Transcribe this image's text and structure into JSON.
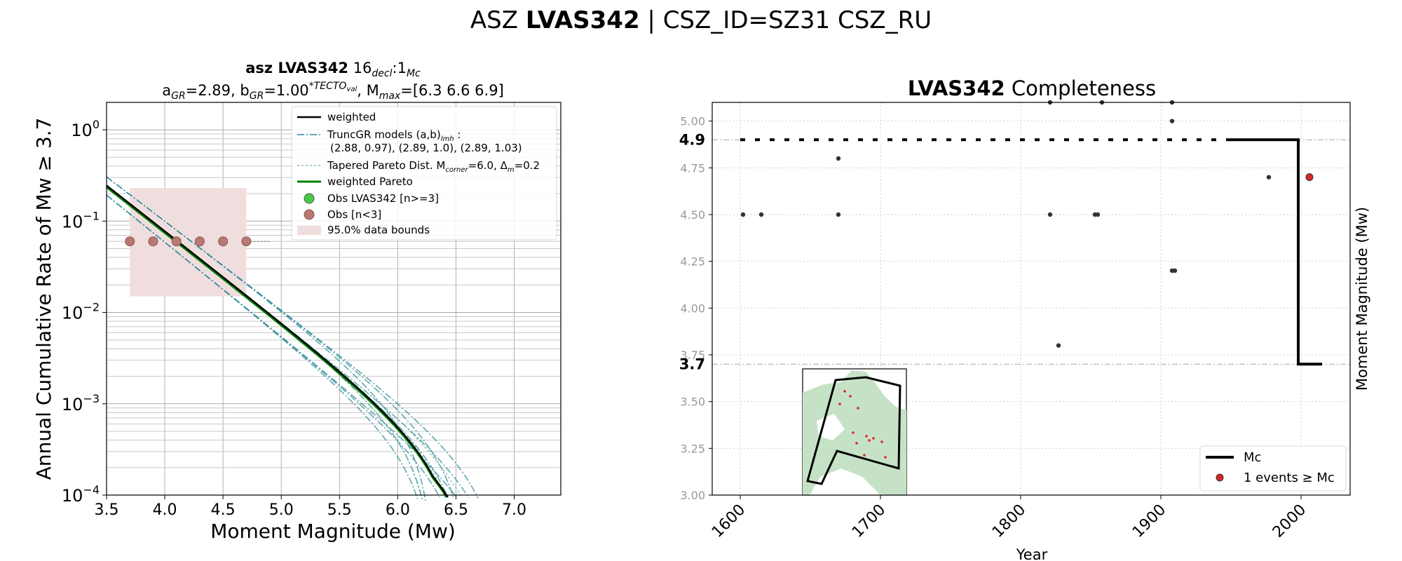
{
  "suptitle": {
    "prefix": "ASZ ",
    "bold": "LVAS342",
    "suffix": " | CSZ_ID=SZ31 CSZ_RU"
  },
  "colors": {
    "weighted": "#000000",
    "truncgr": "#2e8b9a",
    "pareto_models": "#6fb8ad",
    "weighted_pareto": "#008000",
    "obs_small": "#b87873",
    "obs_small_edge": "#8c5550",
    "obs_large": "#44cc44",
    "bounds": "#f0dede",
    "events": "#333333",
    "mc_event": "#d62728",
    "map_land": "#c6e2c6"
  },
  "chart_data": [
    {
      "type": "line",
      "title_line1": {
        "bold": "asz LVAS342",
        "n": "16",
        "n_sub": "decl",
        "sep": ":1",
        "sep_sub": "Mc"
      },
      "title_line2": {
        "a_label": "a",
        "a_sub": "GR",
        "a_val": "=2.89,  ",
        "b_label": "b",
        "b_sub": "GR",
        "b_val": "=1.00",
        "b_sup": "*TECTO",
        "b_sup_sub": "val",
        "mmax_label": ", M",
        "mmax_sub": "max",
        "mmax_val": "=[6.3 6.6 6.9]"
      },
      "xlabel": "Moment Magnitude (Mw)",
      "ylabel": "Annual Cumulative Rate of Mw  ≥  3.7",
      "xlim": [
        3.5,
        7.4
      ],
      "ylim_log10": [
        -4,
        0.3
      ],
      "yscale": "log",
      "x_ticks": [
        "3.5",
        "4.0",
        "4.5",
        "5.0",
        "5.5",
        "6.0",
        "6.5",
        "7.0"
      ],
      "y_ticks": [
        {
          "base": "10",
          "exp": "0",
          "v": 0
        },
        {
          "base": "10",
          "exp": "−1",
          "v": -1
        },
        {
          "base": "10",
          "exp": "−2",
          "v": -2
        },
        {
          "base": "10",
          "exp": "−3",
          "v": -3
        },
        {
          "base": "10",
          "exp": "−4",
          "v": -4
        }
      ],
      "a_value": 2.89,
      "b_value": 1.0,
      "mmin": 3.5,
      "truncgr_models": [
        [
          2.88,
          0.97
        ],
        [
          2.89,
          1.0
        ],
        [
          2.89,
          1.03
        ]
      ],
      "mmax_values": [
        6.3,
        6.6,
        6.9
      ],
      "pareto_corner": 6.0,
      "observations": [
        {
          "x": 3.7,
          "y": 0.06
        },
        {
          "x": 3.9,
          "y": 0.06
        },
        {
          "x": 4.1,
          "y": 0.06
        },
        {
          "x": 4.3,
          "y": 0.06
        },
        {
          "x": 4.5,
          "y": 0.06
        },
        {
          "x": 4.7,
          "y": 0.06
        }
      ],
      "bounds_box": {
        "x": [
          3.7,
          4.7
        ],
        "y": [
          0.015,
          0.23
        ]
      },
      "legend": {
        "weighted": "weighted",
        "truncgr_1": "TruncGR models (a,b)",
        "truncgr_1_sub": "lmh",
        "truncgr_1_tail": " :",
        "truncgr_2": "(2.88, 0.97), (2.89, 1.0), (2.89, 1.03)",
        "pareto_a": "Tapered Pareto Dist. M",
        "pareto_sub": "corner",
        "pareto_b": "=6.0, Δ",
        "pareto_sub2": "m",
        "pareto_c": "=0.2",
        "weighted_pareto": "weighted Pareto",
        "obs_large": "Obs LVAS342 [n>=3]",
        "obs_small": "Obs [n<3]",
        "bounds": "95.0% data bounds"
      }
    },
    {
      "type": "scatter",
      "title": {
        "bold": "LVAS342",
        "rest": " Completeness"
      },
      "xlabel": "Year",
      "ylabel": "Moment Magnitude (Mw)",
      "xlim": [
        1580,
        2035
      ],
      "ylim": [
        3.0,
        5.1
      ],
      "x_ticks": [
        "1600",
        "1700",
        "1800",
        "1900",
        "2000"
      ],
      "y_ticks": [
        "3.00",
        "3.25",
        "3.50",
        "3.75",
        "4.00",
        "4.25",
        "4.50",
        "4.75",
        "5.00"
      ],
      "mc_labels": [
        {
          "text": "4.9",
          "v": 4.9
        },
        {
          "text": "3.7",
          "v": 3.7
        }
      ],
      "mc_line": [
        {
          "x": 1600,
          "y": 4.9
        },
        {
          "x": 1998,
          "y": 4.9
        },
        {
          "x": 1998,
          "y": 3.7
        },
        {
          "x": 2015,
          "y": 3.7
        }
      ],
      "events": [
        {
          "x": 1602,
          "y": 4.5
        },
        {
          "x": 1615,
          "y": 4.5
        },
        {
          "x": 1670,
          "y": 4.8
        },
        {
          "x": 1670,
          "y": 4.5
        },
        {
          "x": 1821,
          "y": 5.1
        },
        {
          "x": 1821,
          "y": 4.5
        },
        {
          "x": 1827,
          "y": 3.8
        },
        {
          "x": 1853,
          "y": 4.5
        },
        {
          "x": 1855,
          "y": 4.5
        },
        {
          "x": 1858,
          "y": 5.1
        },
        {
          "x": 1908,
          "y": 5.1
        },
        {
          "x": 1908,
          "y": 5.0
        },
        {
          "x": 1908,
          "y": 4.2
        },
        {
          "x": 1910,
          "y": 4.2
        },
        {
          "x": 1977,
          "y": 4.7
        }
      ],
      "mc_events": [
        {
          "x": 2006,
          "y": 4.7
        }
      ],
      "legend": {
        "mc": "Mc",
        "events_a": "1 events ",
        "events_ge": "≥",
        "events_b": " Mc"
      }
    }
  ]
}
